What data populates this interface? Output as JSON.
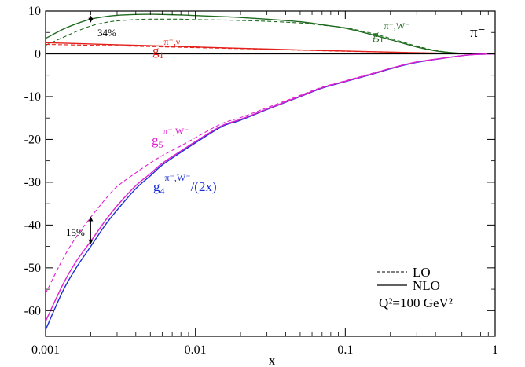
{
  "chart_data": {
    "type": "line",
    "xlabel": "x",
    "ylabel": "",
    "xscale": "log",
    "xlim": [
      0.001,
      1
    ],
    "ylim": [
      -66,
      10
    ],
    "grid": false,
    "xticks": [
      0.001,
      0.01,
      0.1,
      1
    ],
    "xtick_labels": [
      "0.001",
      "0.01",
      "0.1",
      "1"
    ],
    "yticks": [
      10,
      0,
      -10,
      -20,
      -30,
      -40,
      -50,
      -60
    ],
    "ytick_labels": [
      "10",
      "0",
      "-10",
      "-20",
      "-30",
      "-40",
      "-50",
      "-60"
    ],
    "panel_label": "π⁻",
    "legend": {
      "position": "bottom-right",
      "entries": [
        {
          "label": "LO",
          "style": "dashed"
        },
        {
          "label": "NLO",
          "style": "solid"
        }
      ],
      "scale_note": "Q²=100 GeV²"
    },
    "curve_labels": {
      "g1_w": {
        "base": "g",
        "sub": "1",
        "sup": "π⁻,W⁻",
        "suffix": "",
        "color": "#1f6b1f"
      },
      "g1_gamma": {
        "base": "g",
        "sub": "1",
        "sup": "π⁻,γ",
        "suffix": "",
        "color": "#e3201b"
      },
      "g5_w": {
        "base": "g",
        "sub": "5",
        "sup": "π⁻,W⁻",
        "suffix": "",
        "color": "#e020d0"
      },
      "g4_w": {
        "base": "g",
        "sub": "4",
        "sup": "π⁻,W⁻",
        "suffix": "/(2x)",
        "color": "#1a2fd6"
      }
    },
    "annotations": [
      {
        "text": "34%",
        "x": 0.002,
        "y_from": 7.3,
        "y_to": 9.0
      },
      {
        "text": "15%",
        "x": 0.002,
        "y_from": -38,
        "y_to": -44.5
      }
    ],
    "series": [
      {
        "name": "g1 W- NLO",
        "color": "#1f6b1f",
        "style": "solid",
        "x": [
          0.001,
          0.0013,
          0.0016,
          0.002,
          0.0025,
          0.003,
          0.004,
          0.005,
          0.006,
          0.008,
          0.01,
          0.015,
          0.02,
          0.03,
          0.05,
          0.07,
          0.1,
          0.15,
          0.2,
          0.3,
          0.4,
          0.5,
          0.6,
          0.8,
          1.0
        ],
        "y": [
          3.6,
          5.7,
          7.0,
          8.1,
          8.7,
          9.0,
          9.2,
          9.25,
          9.2,
          9.1,
          8.95,
          8.7,
          8.5,
          8.1,
          7.5,
          6.8,
          6.0,
          4.5,
          3.3,
          1.6,
          0.7,
          0.3,
          0.1,
          0.0,
          0.0
        ]
      },
      {
        "name": "g1 W- LO",
        "color": "#1f6b1f",
        "style": "dashed",
        "x": [
          0.001,
          0.0013,
          0.0016,
          0.002,
          0.0025,
          0.003,
          0.004,
          0.005,
          0.006,
          0.008,
          0.01,
          0.015,
          0.02,
          0.03,
          0.05,
          0.07,
          0.1,
          0.15,
          0.2,
          0.3,
          0.4,
          0.5,
          0.6,
          0.8,
          1.0
        ],
        "y": [
          2.0,
          3.8,
          5.2,
          6.5,
          7.3,
          7.7,
          8.0,
          8.1,
          8.1,
          8.1,
          8.0,
          7.9,
          7.8,
          7.6,
          7.2,
          6.7,
          6.1,
          4.8,
          3.6,
          1.8,
          0.8,
          0.3,
          0.1,
          0.0,
          0.0
        ]
      },
      {
        "name": "g1 gamma NLO",
        "color": "#e3201b",
        "style": "solid",
        "x": [
          0.001,
          0.002,
          0.005,
          0.01,
          0.02,
          0.05,
          0.1,
          0.2,
          0.3,
          0.5,
          0.7,
          1.0
        ],
        "y": [
          2.6,
          2.3,
          1.9,
          1.6,
          1.3,
          0.9,
          0.65,
          0.4,
          0.25,
          0.1,
          0.03,
          0.0
        ]
      },
      {
        "name": "g1 gamma LO",
        "color": "#e3201b",
        "style": "dashed",
        "x": [
          0.001,
          0.002,
          0.005,
          0.01,
          0.02,
          0.05,
          0.1,
          0.2,
          0.3,
          0.5,
          0.7,
          1.0
        ],
        "y": [
          2.2,
          2.0,
          1.7,
          1.45,
          1.2,
          0.85,
          0.6,
          0.38,
          0.23,
          0.1,
          0.03,
          0.0
        ]
      },
      {
        "name": "black baseline",
        "color": "#000000",
        "style": "solid",
        "x": [
          0.001,
          1.0
        ],
        "y": [
          0.0,
          0.0
        ]
      },
      {
        "name": "g4 W- NLO",
        "color": "#1a2fd6",
        "style": "solid",
        "x": [
          0.001,
          0.0013,
          0.0016,
          0.002,
          0.0025,
          0.003,
          0.004,
          0.005,
          0.006,
          0.008,
          0.01,
          0.015,
          0.02,
          0.03,
          0.05,
          0.07,
          0.1,
          0.15,
          0.2,
          0.3,
          0.5,
          0.7,
          1.0
        ],
        "y": [
          -64.5,
          -55.5,
          -50.0,
          -45.0,
          -40.0,
          -36.5,
          -31.5,
          -28.5,
          -26.0,
          -23.0,
          -20.8,
          -17.0,
          -15.5,
          -13.0,
          -10.0,
          -8.0,
          -6.5,
          -4.8,
          -3.5,
          -2.0,
          -0.8,
          -0.2,
          0.0
        ]
      },
      {
        "name": "g5 W- NLO",
        "color": "#e020d0",
        "style": "solid",
        "x": [
          0.001,
          0.0013,
          0.0016,
          0.002,
          0.0025,
          0.003,
          0.004,
          0.005,
          0.006,
          0.008,
          0.01,
          0.015,
          0.02,
          0.03,
          0.05,
          0.07,
          0.1,
          0.15,
          0.2,
          0.3,
          0.5,
          0.7,
          1.0
        ],
        "y": [
          -62.5,
          -54.0,
          -48.5,
          -43.8,
          -39.0,
          -35.5,
          -30.8,
          -28.0,
          -25.6,
          -22.7,
          -20.5,
          -16.8,
          -15.3,
          -12.9,
          -9.9,
          -7.9,
          -6.4,
          -4.7,
          -3.4,
          -1.9,
          -0.8,
          -0.2,
          0.0
        ]
      },
      {
        "name": "g5 W- LO",
        "color": "#e020d0",
        "style": "dashed",
        "x": [
          0.001,
          0.0013,
          0.0016,
          0.002,
          0.0025,
          0.003,
          0.004,
          0.005,
          0.006,
          0.008,
          0.01,
          0.015,
          0.02,
          0.03,
          0.05,
          0.07,
          0.1,
          0.15,
          0.2,
          0.3,
          0.5,
          0.7,
          1.0
        ],
        "y": [
          -56.0,
          -48.0,
          -42.8,
          -38.2,
          -34.0,
          -31.0,
          -27.8,
          -25.5,
          -23.8,
          -21.5,
          -19.6,
          -16.3,
          -14.9,
          -12.6,
          -9.7,
          -7.8,
          -6.3,
          -4.6,
          -3.4,
          -1.9,
          -0.8,
          -0.2,
          0.0
        ]
      }
    ]
  }
}
